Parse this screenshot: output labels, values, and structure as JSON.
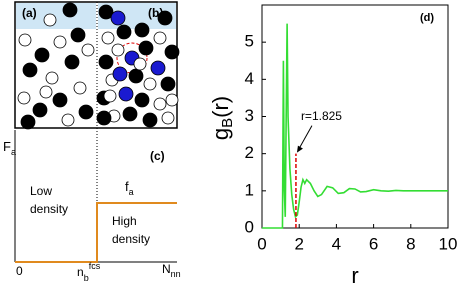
{
  "snapshots": {
    "labels": [
      "(a)",
      "(b)"
    ]
  },
  "schematic": {
    "label": "(c)",
    "y_label": {
      "main": "F",
      "sub": "a"
    },
    "low": [
      "Low",
      "density"
    ],
    "high": [
      "High",
      "density"
    ],
    "level": {
      "main": "f",
      "sub": "a"
    },
    "origin": "0",
    "threshold": {
      "main": "n",
      "sub": "b",
      "sup": "fcs"
    },
    "x_label": {
      "main": "N",
      "sub": "nn"
    }
  },
  "chart_data": {
    "type": "line",
    "label": "(d)",
    "x_label": "r",
    "y_label": {
      "main": "g",
      "sub": "B",
      "rest": "(r)"
    },
    "xlim": [
      0,
      10
    ],
    "ylim": [
      0,
      6
    ],
    "xticks": [
      0,
      2,
      4,
      6,
      8,
      10
    ],
    "yticks": [
      0,
      1,
      2,
      3,
      4,
      5
    ],
    "series": [
      {
        "color": "#33dd33",
        "x": [
          0,
          1.0,
          1.1,
          1.15,
          1.2,
          1.25,
          1.3,
          1.35,
          1.4,
          1.5,
          1.6,
          1.7,
          1.8,
          1.9,
          2.0,
          2.1,
          2.2,
          2.3,
          2.4,
          2.5,
          2.6,
          2.8,
          3.0,
          3.2,
          3.5,
          3.8,
          4.1,
          4.4,
          4.7,
          5.0,
          5.3,
          5.6,
          6.0,
          6.4,
          6.8,
          7.2,
          7.6,
          8.0,
          8.5,
          9.0,
          9.5,
          10
        ],
        "values": [
          0,
          0,
          0,
          4.5,
          1.0,
          0.3,
          3.0,
          5.5,
          3.0,
          1.6,
          0.9,
          0.5,
          0.3,
          0.35,
          0.7,
          1.1,
          1.3,
          1.2,
          1.3,
          1.25,
          1.2,
          1.0,
          0.85,
          0.9,
          1.12,
          1.08,
          0.93,
          0.95,
          1.06,
          1.05,
          0.97,
          0.98,
          1.03,
          1.0,
          0.99,
          1.01,
          1.0,
          1.0,
          1.0,
          1.0,
          1.0,
          1.0
        ]
      }
    ],
    "annotation": {
      "text": "r=1.825",
      "x": 1.825,
      "y": 2,
      "color": "#dd0000"
    }
  }
}
